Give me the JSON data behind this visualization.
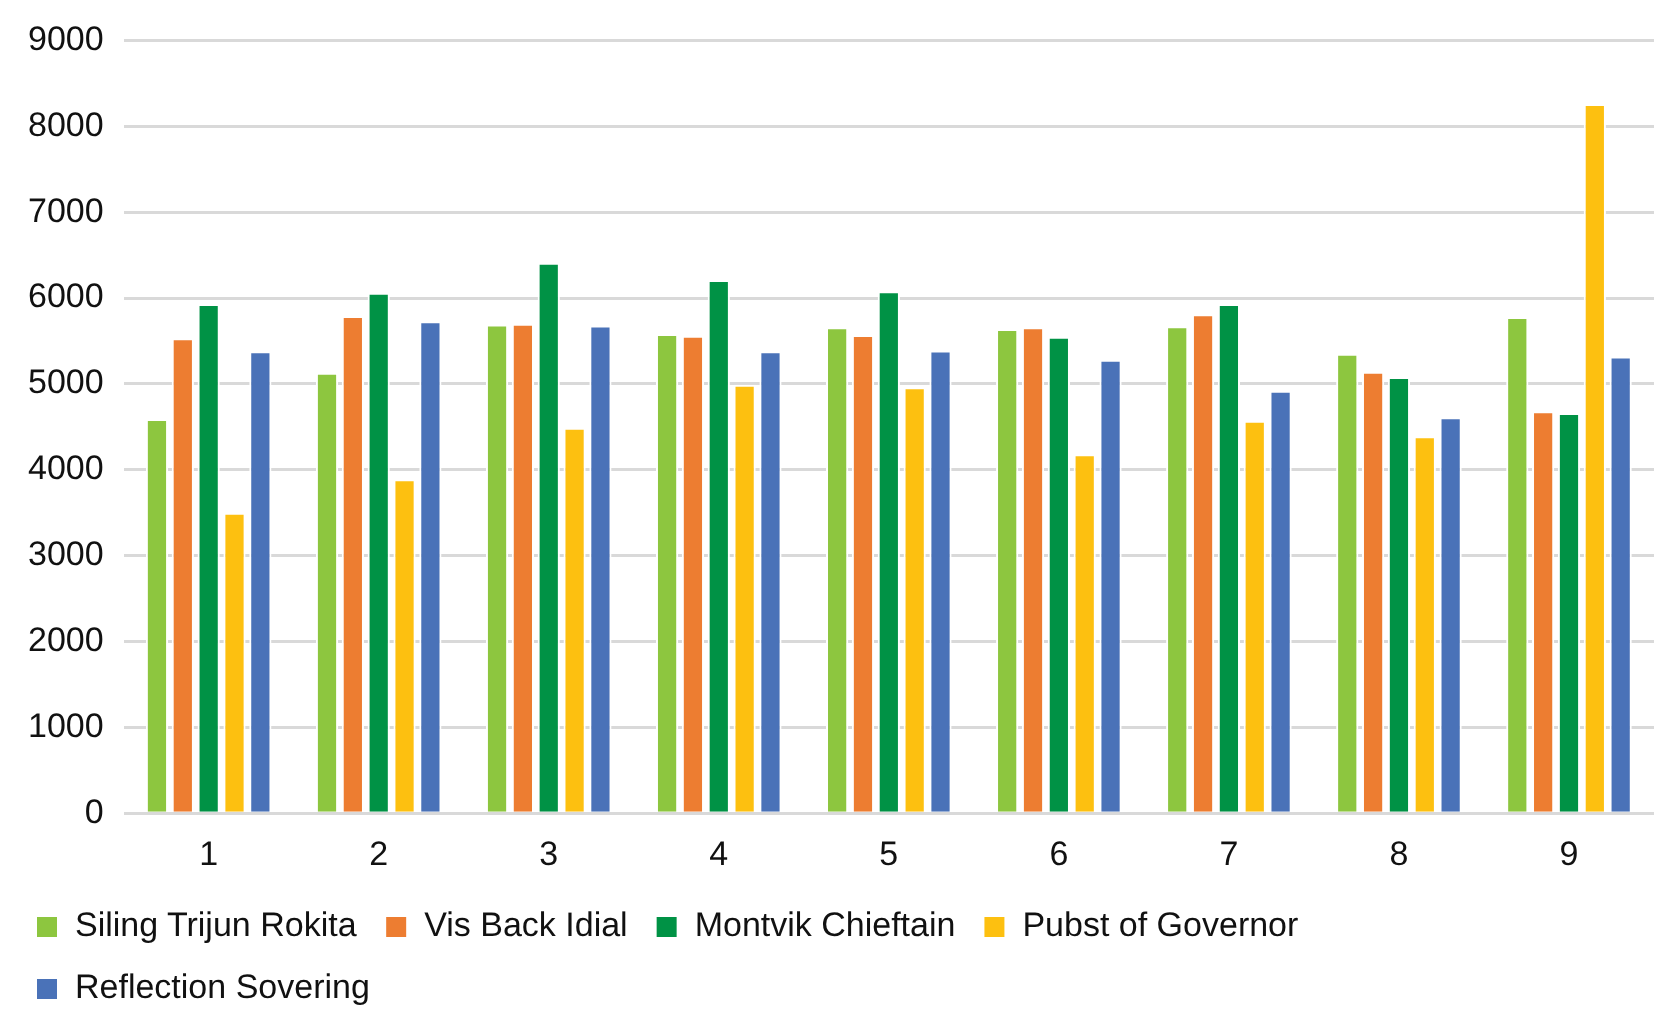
{
  "chart_data": {
    "type": "bar",
    "categories": [
      "1",
      "2",
      "3",
      "4",
      "5",
      "6",
      "7",
      "8",
      "9"
    ],
    "series": [
      {
        "name": "Siling Trijun Rokita",
        "color": "#8dc63f",
        "values": [
          4590,
          5130,
          5690,
          5580,
          5660,
          5640,
          5670,
          5350,
          5780
        ]
      },
      {
        "name": "Vis Back Idial",
        "color": "#ed7d31",
        "values": [
          5530,
          5790,
          5700,
          5560,
          5570,
          5660,
          5810,
          5140,
          4680
        ]
      },
      {
        "name": "Montvik Chieftain",
        "color": "#009245",
        "values": [
          5930,
          6060,
          6410,
          6210,
          6080,
          5550,
          5930,
          5080,
          4660
        ]
      },
      {
        "name": "Pubst of Governor",
        "color": "#fdc010",
        "values": [
          3500,
          3890,
          4490,
          4990,
          4960,
          4180,
          4570,
          4390,
          8260
        ]
      },
      {
        "name": "Reflection Sovering",
        "color": "#4a72b8",
        "values": [
          5380,
          5730,
          5680,
          5380,
          5390,
          5280,
          4920,
          4610,
          5320
        ]
      }
    ],
    "ylim": [
      0,
      9000
    ],
    "yticks": [
      0,
      1000,
      2000,
      3000,
      4000,
      5000,
      6000,
      7000,
      8000,
      9000
    ],
    "grid": "y",
    "legend": "bottom"
  }
}
